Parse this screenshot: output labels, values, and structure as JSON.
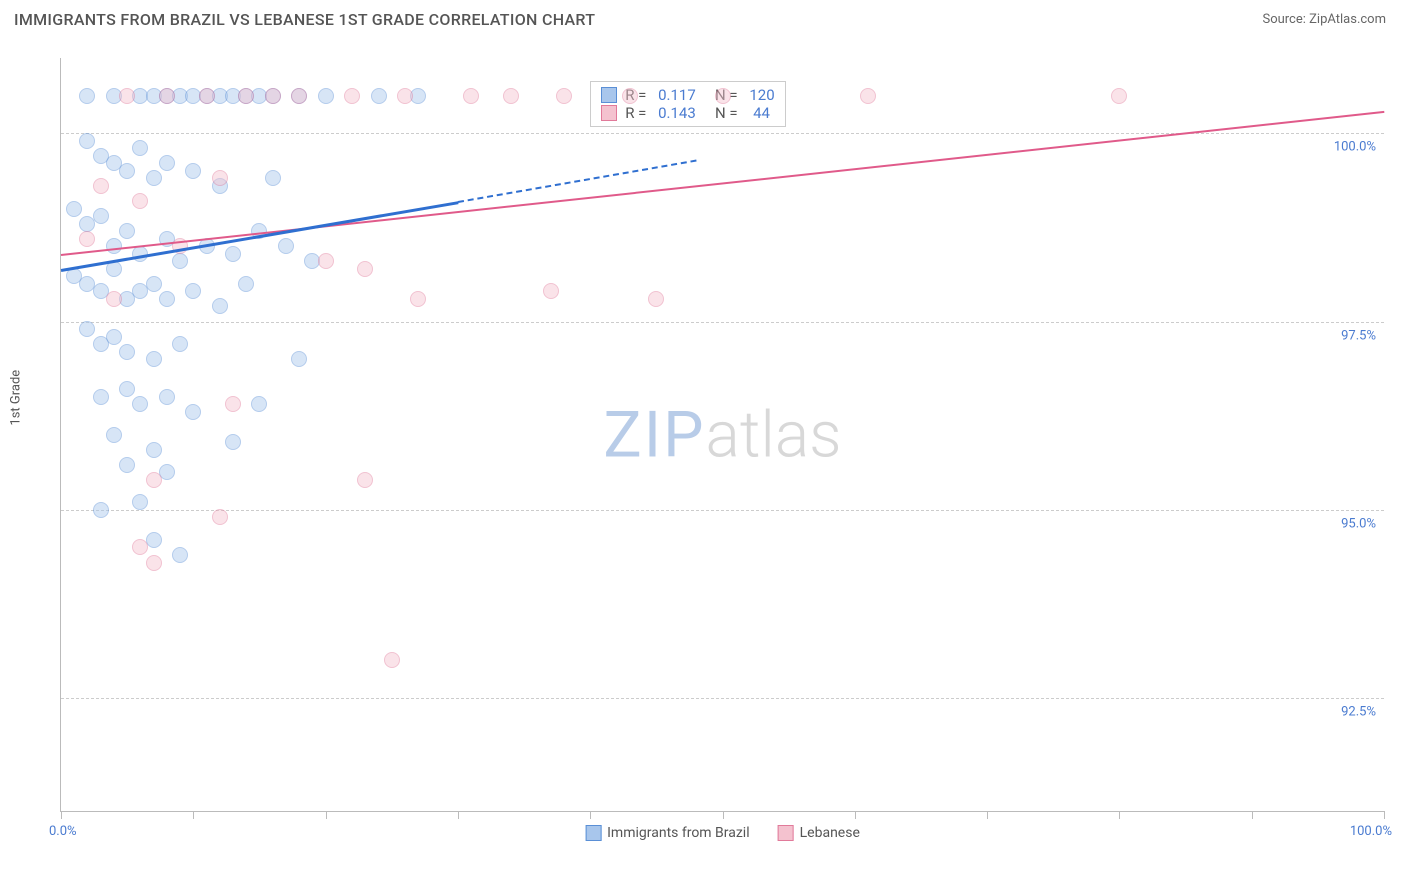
{
  "title": "IMMIGRANTS FROM BRAZIL VS LEBANESE 1ST GRADE CORRELATION CHART",
  "source_label": "Source: ZipAtlas.com",
  "y_axis_label": "1st Grade",
  "x_min_label": "0.0%",
  "x_max_label": "100.0%",
  "chart": {
    "type": "scatter",
    "xlim": [
      0,
      100
    ],
    "ylim": [
      91,
      101
    ],
    "y_gridlines": [
      92.5,
      95.0,
      97.5,
      100.0
    ],
    "y_tick_labels": [
      "92.5%",
      "95.0%",
      "97.5%",
      "100.0%"
    ],
    "x_tick_positions": [
      0,
      10,
      20,
      30,
      40,
      50,
      60,
      70,
      80,
      90,
      100
    ],
    "background_color": "#ffffff",
    "grid_color": "#cccccc",
    "axis_color": "#bbbbbb",
    "tick_label_color": "#4a7bd0",
    "marker_radius": 8,
    "marker_opacity": 0.45,
    "series": [
      {
        "name": "Immigrants from Brazil",
        "color_fill": "#a8c6ec",
        "color_stroke": "#5a8fd6",
        "r_value": "0.117",
        "n_value": "120",
        "trend": {
          "x1": 0,
          "y1": 98.2,
          "x2": 30,
          "y2": 99.1,
          "color": "#2f6fd0",
          "width": 2.5,
          "dash_ext_x2": 48,
          "dash_ext_y2": 99.65
        },
        "points": [
          [
            2,
            100.5
          ],
          [
            4,
            100.5
          ],
          [
            6,
            100.5
          ],
          [
            7,
            100.5
          ],
          [
            8,
            100.5
          ],
          [
            9,
            100.5
          ],
          [
            10,
            100.5
          ],
          [
            11,
            100.5
          ],
          [
            12,
            100.5
          ],
          [
            13,
            100.5
          ],
          [
            14,
            100.5
          ],
          [
            15,
            100.5
          ],
          [
            16,
            100.5
          ],
          [
            18,
            100.5
          ],
          [
            20,
            100.5
          ],
          [
            24,
            100.5
          ],
          [
            27,
            100.5
          ],
          [
            2,
            99.9
          ],
          [
            3,
            99.7
          ],
          [
            4,
            99.6
          ],
          [
            5,
            99.5
          ],
          [
            6,
            99.8
          ],
          [
            7,
            99.4
          ],
          [
            8,
            99.6
          ],
          [
            10,
            99.5
          ],
          [
            12,
            99.3
          ],
          [
            16,
            99.4
          ],
          [
            1,
            99.0
          ],
          [
            2,
            98.8
          ],
          [
            3,
            98.9
          ],
          [
            4,
            98.5
          ],
          [
            5,
            98.7
          ],
          [
            6,
            98.4
          ],
          [
            8,
            98.6
          ],
          [
            9,
            98.3
          ],
          [
            11,
            98.5
          ],
          [
            13,
            98.4
          ],
          [
            15,
            98.7
          ],
          [
            17,
            98.5
          ],
          [
            19,
            98.3
          ],
          [
            1,
            98.1
          ],
          [
            2,
            98.0
          ],
          [
            3,
            97.9
          ],
          [
            4,
            98.2
          ],
          [
            5,
            97.8
          ],
          [
            6,
            97.9
          ],
          [
            7,
            98.0
          ],
          [
            8,
            97.8
          ],
          [
            10,
            97.9
          ],
          [
            12,
            97.7
          ],
          [
            14,
            98.0
          ],
          [
            2,
            97.4
          ],
          [
            3,
            97.2
          ],
          [
            4,
            97.3
          ],
          [
            5,
            97.1
          ],
          [
            7,
            97.0
          ],
          [
            9,
            97.2
          ],
          [
            18,
            97.0
          ],
          [
            3,
            96.5
          ],
          [
            5,
            96.6
          ],
          [
            6,
            96.4
          ],
          [
            8,
            96.5
          ],
          [
            10,
            96.3
          ],
          [
            15,
            96.4
          ],
          [
            4,
            96.0
          ],
          [
            7,
            95.8
          ],
          [
            5,
            95.6
          ],
          [
            8,
            95.5
          ],
          [
            13,
            95.9
          ],
          [
            3,
            95.0
          ],
          [
            6,
            95.1
          ],
          [
            7,
            94.6
          ],
          [
            9,
            94.4
          ]
        ]
      },
      {
        "name": "Lebanese",
        "color_fill": "#f4c2cf",
        "color_stroke": "#e17a9a",
        "r_value": "0.143",
        "n_value": "44",
        "trend": {
          "x1": 0,
          "y1": 98.4,
          "x2": 100,
          "y2": 100.3,
          "color": "#e05a8a",
          "width": 2
        },
        "points": [
          [
            5,
            100.5
          ],
          [
            8,
            100.5
          ],
          [
            11,
            100.5
          ],
          [
            14,
            100.5
          ],
          [
            16,
            100.5
          ],
          [
            18,
            100.5
          ],
          [
            22,
            100.5
          ],
          [
            26,
            100.5
          ],
          [
            31,
            100.5
          ],
          [
            34,
            100.5
          ],
          [
            38,
            100.5
          ],
          [
            43,
            100.5
          ],
          [
            50,
            100.5
          ],
          [
            61,
            100.5
          ],
          [
            80,
            100.5
          ],
          [
            3,
            99.3
          ],
          [
            6,
            99.1
          ],
          [
            12,
            99.4
          ],
          [
            2,
            98.6
          ],
          [
            9,
            98.5
          ],
          [
            20,
            98.3
          ],
          [
            23,
            98.2
          ],
          [
            4,
            97.8
          ],
          [
            27,
            97.8
          ],
          [
            37,
            97.9
          ],
          [
            45,
            97.8
          ],
          [
            13,
            96.4
          ],
          [
            7,
            95.4
          ],
          [
            23,
            95.4
          ],
          [
            6,
            94.5
          ],
          [
            12,
            94.9
          ],
          [
            7,
            94.3
          ],
          [
            25,
            93.0
          ]
        ]
      }
    ],
    "stat_box": {
      "left_pct": 40,
      "top_pct": 3
    }
  },
  "legend": {
    "series1_label": "Immigrants from Brazil",
    "series2_label": "Lebanese"
  },
  "watermark": {
    "zip": "ZIP",
    "atlas": "atlas"
  }
}
